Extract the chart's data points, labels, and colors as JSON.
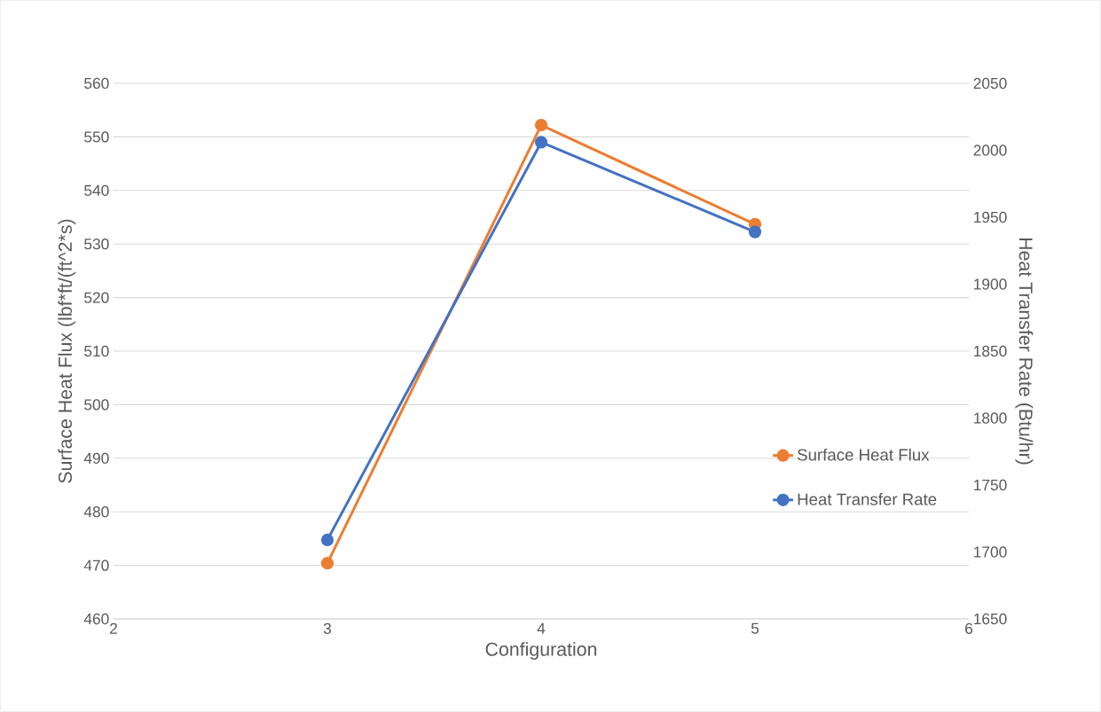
{
  "chart_data": {
    "type": "line",
    "xlabel": "Configuration",
    "ylabel": "Surface Heat Flux (lbf*ft/(ft^2*s)",
    "y2label": "Heat Transfer Rate (Btu/hr)",
    "x": [
      3,
      4,
      5
    ],
    "series": [
      {
        "name": "Surface Heat Flux",
        "color": "#ed7d31",
        "values": [
          470.4,
          552.2,
          533.7
        ]
      },
      {
        "name": "Heat Transfer Rate",
        "color": "#4472c4",
        "values": [
          1709,
          2006,
          1939
        ],
        "axis": "y2"
      }
    ],
    "xlim": [
      2,
      6
    ],
    "xticks": [
      2,
      3,
      4,
      5,
      6
    ],
    "ylim": [
      460,
      560
    ],
    "yticks": [
      460,
      470,
      480,
      490,
      500,
      510,
      520,
      530,
      540,
      550,
      560
    ],
    "y2lim": [
      1650,
      2050
    ],
    "y2ticks": [
      1650,
      1700,
      1750,
      1800,
      1850,
      1900,
      1950,
      2000,
      2050
    ],
    "grid": "y",
    "legend": "bottom right",
    "marker": "circle",
    "line_style": "solid"
  }
}
